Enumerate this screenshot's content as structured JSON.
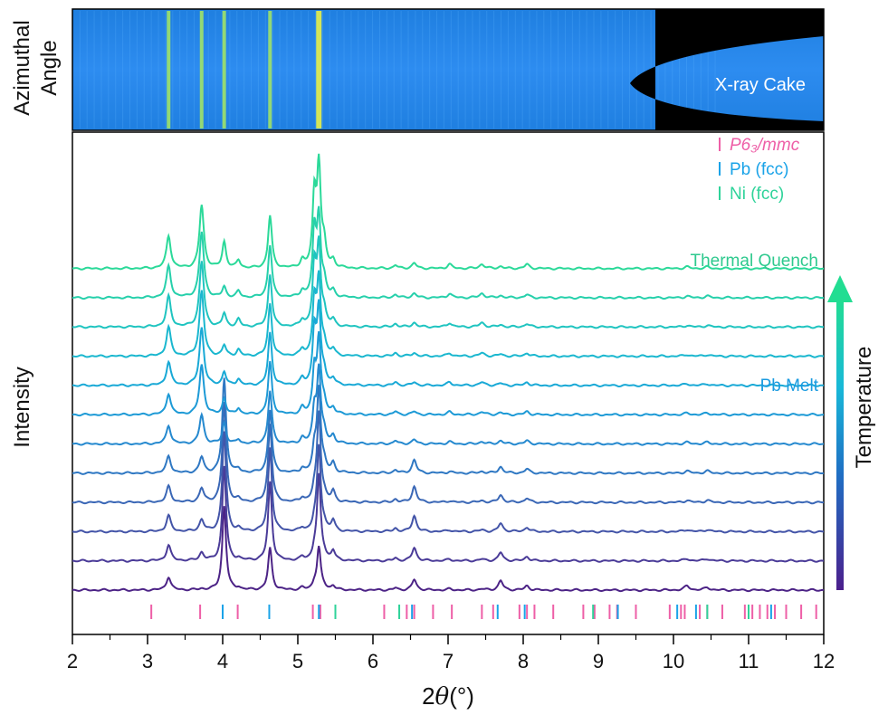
{
  "chart_data": {
    "type": "line",
    "xlabel_prefix": "2",
    "xlabel_symbol": "θ",
    "xlabel_unit": "(°)",
    "ylabel": "Intensity",
    "cake_ylabel_line1": "Azimuthal",
    "cake_ylabel_line2": "Angle",
    "cake_label": "X-ray Cake",
    "xlim": [
      2,
      12
    ],
    "xticks": [
      2,
      3,
      4,
      5,
      6,
      7,
      8,
      9,
      10,
      11,
      12
    ],
    "xtick_labels": [
      "2",
      "3",
      "4",
      "5",
      "6",
      "7",
      "8",
      "9",
      "10",
      "11",
      "12"
    ],
    "legend": [
      {
        "label": "P6₃/mmc",
        "color": "#ee5fa7",
        "italic": true
      },
      {
        "label": "Pb (fcc)",
        "color": "#1aa3e8",
        "italic": false
      },
      {
        "label": "Ni (fcc)",
        "color": "#2fd39a",
        "italic": false
      }
    ],
    "annotations": [
      {
        "text": "Thermal Quench",
        "color": "#2ec98e"
      },
      {
        "text": "Pb Melt",
        "color": "#1a9be0"
      }
    ],
    "temperature_label": "Temperature",
    "temperature_gradient": [
      "#4b1f8c",
      "#1f6fc4",
      "#18b8d8",
      "#22dd92"
    ],
    "reference_ticks": {
      "P6_3/mmc": [
        3.05,
        3.7,
        4.2,
        5.2,
        5.3,
        6.15,
        6.45,
        6.55,
        6.8,
        7.05,
        7.45,
        7.6,
        7.95,
        8.05,
        8.15,
        8.4,
        8.8,
        8.95,
        9.15,
        9.25,
        9.5,
        9.95,
        10.1,
        10.15,
        10.35,
        10.45,
        10.65,
        10.95,
        11.05,
        11.15,
        11.25,
        11.35,
        11.5,
        11.7,
        11.9
      ],
      "Pb (fcc)": [
        4.0,
        4.62,
        5.28,
        6.52,
        7.66,
        8.02,
        9.26,
        10.05,
        10.3,
        11.3
      ],
      "Ni (fcc)": [
        5.5,
        6.35,
        8.93,
        10.45,
        11.0
      ]
    },
    "series_count": 12,
    "series_colors": [
      "#4c2386",
      "#4a3b98",
      "#4354a8",
      "#3a67b6",
      "#2f78c3",
      "#2589cf",
      "#1d9ad6",
      "#19a9d6",
      "#1ab7cf",
      "#1fc4c0",
      "#26d0ab",
      "#2bd999"
    ],
    "peaks": [
      {
        "x": 3.28,
        "amp": [
          25,
          30,
          30,
          30,
          32,
          35,
          40,
          45,
          55,
          58,
          60,
          62
        ],
        "w": 0.035
      },
      {
        "x": 3.72,
        "amp": [
          2,
          15,
          22,
          26,
          30,
          55,
          95,
          110,
          125,
          125,
          125,
          120
        ],
        "w": 0.035
      },
      {
        "x": 4.02,
        "amp": [
          160,
          180,
          190,
          190,
          180,
          40,
          30,
          25,
          20,
          25,
          20,
          50
        ],
        "w": 0.03
      },
      {
        "x": 4.21,
        "amp": [
          4,
          4,
          5,
          5,
          6,
          8,
          12,
          12,
          12,
          14,
          12,
          15
        ],
        "w": 0.03
      },
      {
        "x": 4.63,
        "amp": [
          80,
          150,
          160,
          150,
          120,
          100,
          100,
          100,
          100,
          100,
          100,
          100
        ],
        "w": 0.03
      },
      {
        "x": 5.06,
        "amp": [
          4,
          6,
          6,
          8,
          8,
          10,
          12,
          12,
          12,
          12,
          12,
          14
        ],
        "w": 0.03
      },
      {
        "x": 5.22,
        "amp": [
          10,
          15,
          15,
          18,
          40,
          60,
          80,
          100,
          100,
          110,
          120,
          130
        ],
        "w": 0.028
      },
      {
        "x": 5.28,
        "amp": [
          80,
          160,
          160,
          170,
          160,
          140,
          140,
          140,
          140,
          150,
          150,
          190
        ],
        "w": 0.03
      },
      {
        "x": 5.35,
        "amp": [
          4,
          8,
          10,
          10,
          14,
          18,
          20,
          22,
          22,
          24,
          26,
          40
        ],
        "w": 0.03
      },
      {
        "x": 5.47,
        "amp": [
          8,
          18,
          20,
          20,
          18,
          15,
          12,
          12,
          12,
          12,
          12,
          14
        ],
        "w": 0.03
      },
      {
        "x": 6.55,
        "amp": [
          20,
          25,
          30,
          30,
          25,
          8,
          6,
          6,
          6,
          8,
          8,
          10
        ],
        "w": 0.035
      },
      {
        "x": 6.3,
        "amp": [
          4,
          5,
          6,
          6,
          6,
          6,
          6,
          6,
          6,
          6,
          6,
          6
        ],
        "w": 0.03
      },
      {
        "x": 7.02,
        "amp": [
          2,
          3,
          3,
          3,
          3,
          4,
          5,
          6,
          6,
          8,
          8,
          8
        ],
        "w": 0.035
      },
      {
        "x": 7.45,
        "amp": [
          2,
          3,
          3,
          3,
          3,
          4,
          5,
          6,
          6,
          8,
          8,
          8
        ],
        "w": 0.04
      },
      {
        "x": 7.7,
        "amp": [
          18,
          16,
          16,
          14,
          12,
          6,
          4,
          4,
          4,
          4,
          4,
          4
        ],
        "w": 0.035
      },
      {
        "x": 8.05,
        "amp": [
          8,
          8,
          8,
          8,
          8,
          6,
          6,
          6,
          6,
          6,
          6,
          8
        ],
        "w": 0.035
      },
      {
        "x": 10.18,
        "amp": [
          8,
          4,
          4,
          4,
          4,
          3,
          3,
          3,
          3,
          3,
          3,
          3
        ],
        "w": 0.04
      },
      {
        "x": 10.45,
        "amp": [
          5,
          4,
          4,
          4,
          4,
          3,
          3,
          3,
          3,
          3,
          3,
          3
        ],
        "w": 0.04
      }
    ]
  }
}
